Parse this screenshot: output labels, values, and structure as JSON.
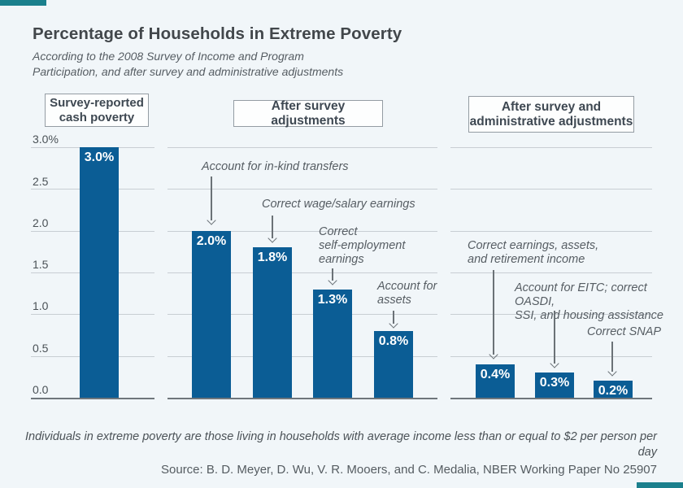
{
  "page": {
    "background_color": "#f1f6f9",
    "accent_color": "#1b808d"
  },
  "chart_data": {
    "type": "bar",
    "title": "Percentage of Households in Extreme Poverty",
    "subtitle": "According to the 2008 Survey of Income and Program\nParticipation, and after survey and administrative adjustments",
    "ylim": [
      0,
      3.0
    ],
    "grid": true,
    "legend": "none",
    "bar_color": "#0b5d95",
    "yticks": [
      {
        "value": 3.0,
        "label": "3.0%"
      },
      {
        "value": 2.5,
        "label": "2.5"
      },
      {
        "value": 2.0,
        "label": "2.0"
      },
      {
        "value": 1.5,
        "label": "1.5"
      },
      {
        "value": 1.0,
        "label": "1.0"
      },
      {
        "value": 0.5,
        "label": "0.5"
      },
      {
        "value": 0.0,
        "label": "0.0"
      }
    ],
    "panels": [
      {
        "header": "Survey-reported\ncash poverty",
        "bars": [
          {
            "value": 3.0,
            "label": "3.0%",
            "annotation": null
          }
        ]
      },
      {
        "header": "After survey adjustments",
        "bars": [
          {
            "value": 2.0,
            "label": "2.0%",
            "annotation": "Account for in-kind transfers"
          },
          {
            "value": 1.8,
            "label": "1.8%",
            "annotation": "Correct wage/salary earnings"
          },
          {
            "value": 1.3,
            "label": "1.3%",
            "annotation": "Correct\nself-employment\nearnings"
          },
          {
            "value": 0.8,
            "label": "0.8%",
            "annotation": "Account for\nassets"
          }
        ]
      },
      {
        "header": "After survey and\nadministrative adjustments",
        "bars": [
          {
            "value": 0.4,
            "label": "0.4%",
            "annotation": "Correct earnings, assets,\nand retirement income"
          },
          {
            "value": 0.3,
            "label": "0.3%",
            "annotation": "Account for EITC; correct OASDI,\nSSI, and housing assistance"
          },
          {
            "value": 0.2,
            "label": "0.2%",
            "annotation": "Correct SNAP"
          }
        ]
      }
    ]
  },
  "footer": {
    "note": "Individuals in extreme poverty are those living in households with average income less than or equal to $2 per person per day",
    "source": "Source:  B. D. Meyer, D. Wu, V. R. Mooers, and C. Medalia, NBER Working Paper No 25907"
  }
}
